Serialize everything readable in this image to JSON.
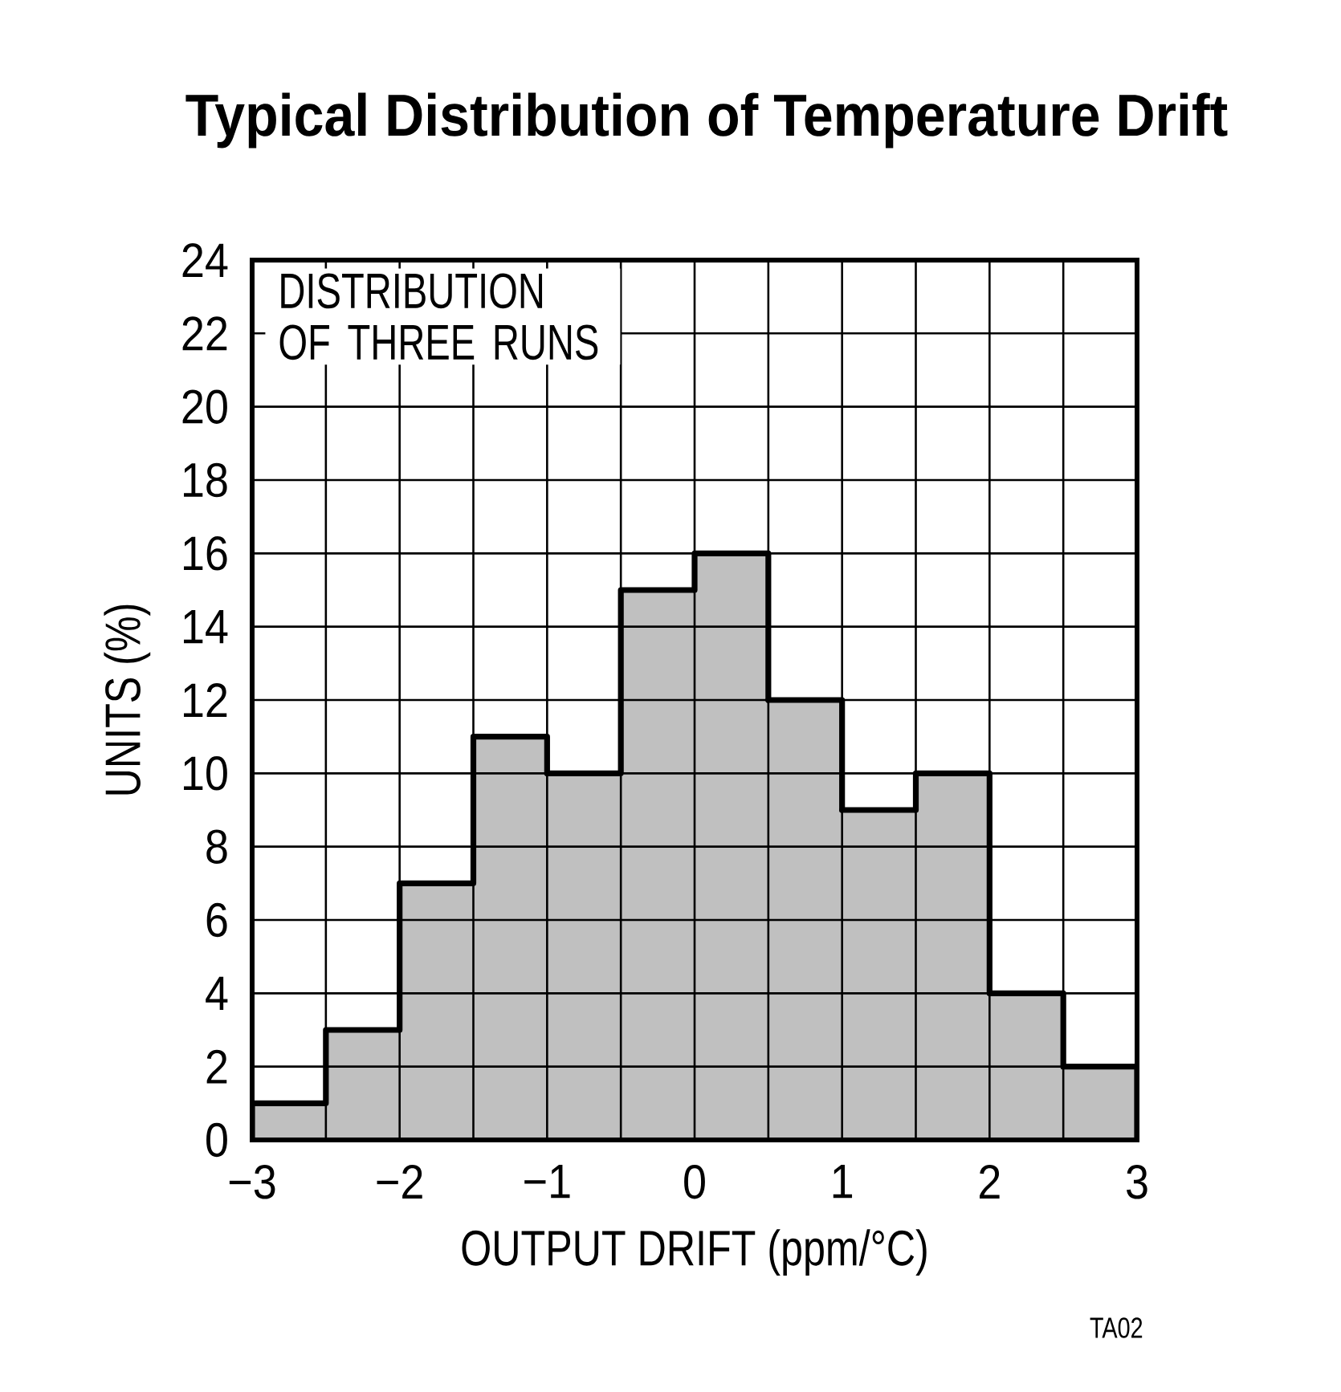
{
  "chart_data": {
    "type": "histogram",
    "title": "Typical Distribution of Temperature Drift",
    "xlabel": "OUTPUT DRIFT (ppm/°C)",
    "ylabel": "UNITS (%)",
    "bins": [
      -3,
      -2.5,
      -2,
      -1.5,
      -1,
      -0.5,
      0,
      0.5,
      1,
      1.5,
      2,
      2.5,
      3
    ],
    "values": [
      1,
      3,
      7,
      11,
      10,
      15,
      16,
      12,
      9,
      10,
      4,
      2
    ],
    "color": "#c0c0c0",
    "xlim": [
      -3,
      3
    ],
    "ylim": [
      0,
      24
    ],
    "xticks": [
      {
        "value": -3,
        "label": "−3"
      },
      {
        "value": -2.5,
        "label": null
      },
      {
        "value": -2,
        "label": "−2"
      },
      {
        "value": -1.5,
        "label": null
      },
      {
        "value": -1,
        "label": "−1"
      },
      {
        "value": -0.5,
        "label": null
      },
      0,
      {
        "value": 0.5,
        "label": null
      },
      1,
      {
        "value": 1.5,
        "label": null
      },
      2,
      {
        "value": 2.5,
        "label": null
      },
      3
    ],
    "yticks": [
      0,
      2,
      4,
      6,
      8,
      10,
      12,
      14,
      16,
      18,
      20,
      22,
      24
    ],
    "grid": true,
    "annotations": [
      "DISTRIBUTION OF THREE RUNS",
      "TA02"
    ]
  }
}
